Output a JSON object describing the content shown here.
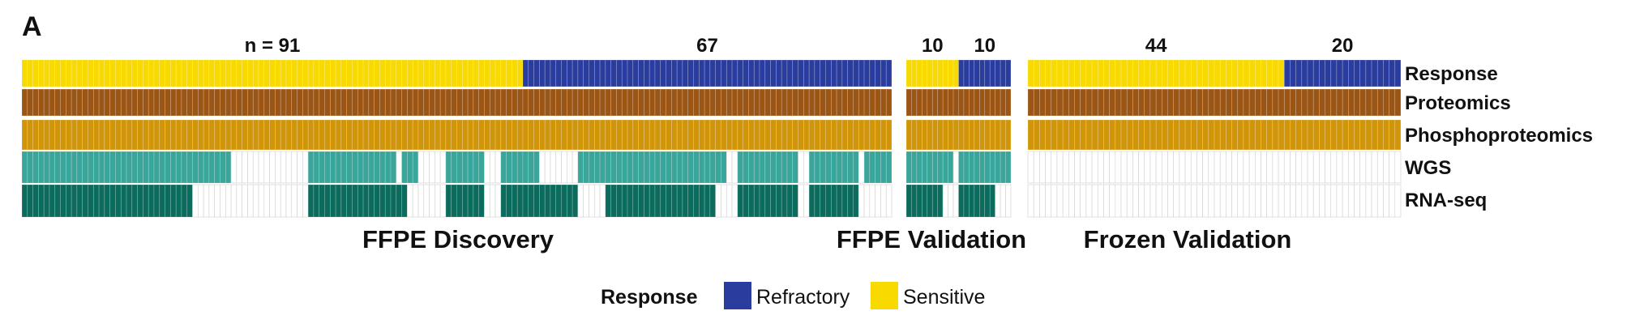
{
  "panel_label": "A",
  "chart_data": {
    "type": "heatmap",
    "title": "",
    "rows": [
      "Response",
      "Proteomics",
      "Phosphoproteomics",
      "WGS",
      "RNA-seq"
    ],
    "colors": {
      "sensitive": "#F8D900",
      "refractory": "#2A3D9E",
      "proteomics": "#9B5515",
      "phosphoproteomics": "#D1950A",
      "wgs": "#3AA59B",
      "rnaseq": "#0B6B5D",
      "empty": "#ffffff",
      "grid": "#cfcfcf"
    },
    "cohorts": [
      {
        "name": "FFPE Discovery",
        "n_samples": 158,
        "groups": [
          {
            "label": "n = 91",
            "response": "Sensitive",
            "count": 91
          },
          {
            "label": "67",
            "response": "Refractory",
            "count": 67
          }
        ],
        "proteomics": "all",
        "phosphoproteomics": "all",
        "wgs_present_ranges": [
          [
            0,
            31
          ],
          [
            31,
            38
          ],
          [
            52,
            68
          ],
          [
            69,
            72
          ],
          [
            77,
            84
          ],
          [
            87,
            94
          ],
          [
            101,
            106
          ],
          [
            106,
            128
          ],
          [
            130,
            141
          ],
          [
            143,
            152
          ],
          [
            153,
            158
          ]
        ],
        "rnaseq_present_ranges": [
          [
            0,
            31
          ],
          [
            52,
            70
          ],
          [
            77,
            84
          ],
          [
            87,
            101
          ],
          [
            106,
            126
          ],
          [
            130,
            141
          ],
          [
            143,
            152
          ]
        ]
      },
      {
        "name": "FFPE Validation",
        "n_samples": 20,
        "groups": [
          {
            "label": "10",
            "response": "Sensitive",
            "count": 10
          },
          {
            "label": "10",
            "response": "Refractory",
            "count": 10
          }
        ],
        "proteomics": "all",
        "phosphoproteomics": "all",
        "wgs_present_ranges": [
          [
            0,
            9
          ],
          [
            10,
            20
          ]
        ],
        "rnaseq_present_ranges": [
          [
            0,
            7
          ],
          [
            10,
            17
          ]
        ]
      },
      {
        "name": "Frozen Validation",
        "n_samples": 64,
        "groups": [
          {
            "label": "44",
            "response": "Sensitive",
            "count": 44
          },
          {
            "label": "20",
            "response": "Refractory",
            "count": 20
          }
        ],
        "proteomics": "all",
        "phosphoproteomics": "all",
        "wgs_present_ranges": [],
        "rnaseq_present_ranges": []
      }
    ],
    "legend": {
      "title": "Response",
      "items": [
        {
          "label": "Refractory",
          "color": "#2A3D9E"
        },
        {
          "label": "Sensitive",
          "color": "#F8D900"
        }
      ]
    }
  }
}
